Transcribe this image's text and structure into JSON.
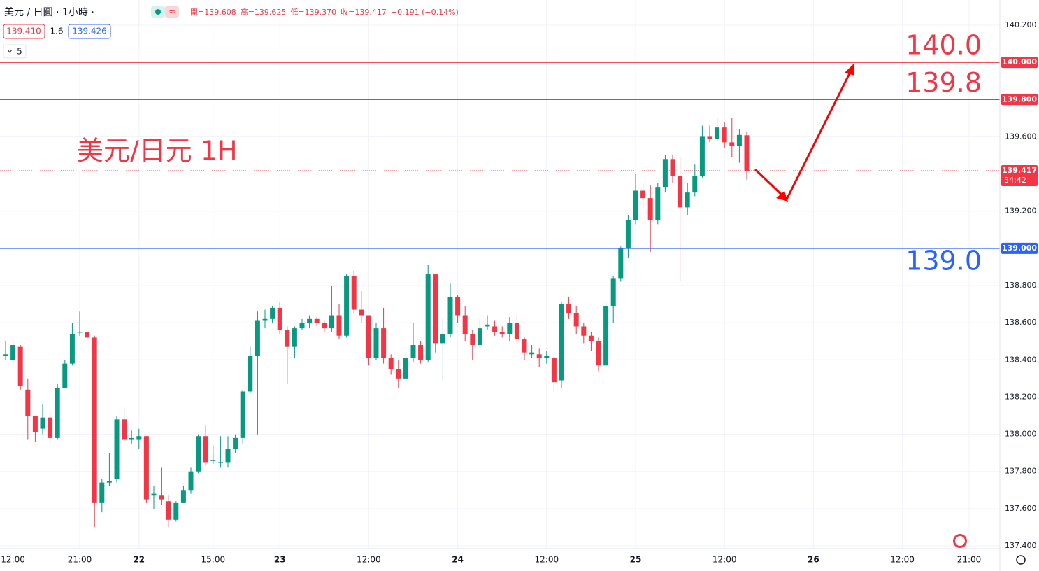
{
  "chart_data": {
    "type": "candlestick",
    "symbol": "美元 / 日圓 · 1小時 ·",
    "ohlc_labels": [
      "開=139.608",
      "高=139.625",
      "低=139.370",
      "收=139.417",
      "−0.191 (−0.14%)"
    ],
    "bid": "139.410",
    "spread": "1.6",
    "ask": "139.426",
    "indicator_count": "5",
    "annotation": "美元/日元 1H",
    "last_price": {
      "value": 139.417,
      "label": "139.417",
      "countdown": "34:42"
    },
    "up_color": "#089981",
    "down_color": "#f23645",
    "grid": true,
    "ylim": [
      137.4,
      140.2
    ],
    "yticks": [
      {
        "value": 140.2,
        "label": "140.200"
      },
      {
        "value": 140.0,
        "label": "140.000"
      },
      {
        "value": 139.8,
        "label": "139.800"
      },
      {
        "value": 139.6,
        "label": "139.600"
      },
      {
        "value": 139.4,
        "label": "139.400"
      },
      {
        "value": 139.2,
        "label": "139.200"
      },
      {
        "value": 139.0,
        "label": "139.000"
      },
      {
        "value": 138.8,
        "label": "138.800"
      },
      {
        "value": 138.6,
        "label": "138.600"
      },
      {
        "value": 138.4,
        "label": "138.400"
      },
      {
        "value": 138.2,
        "label": "138.200"
      },
      {
        "value": 138.0,
        "label": "138.000"
      },
      {
        "value": 137.8,
        "label": "137.800"
      },
      {
        "value": 137.6,
        "label": "137.600"
      },
      {
        "value": 137.4,
        "label": "137.400"
      }
    ],
    "hlines": [
      {
        "value": 140.0,
        "label": "140.0",
        "axis_label": "140.000",
        "color": "#f23645"
      },
      {
        "value": 139.8,
        "label": "139.8",
        "axis_label": "139.800",
        "color": "#f23645"
      },
      {
        "value": 139.0,
        "label": "139.0",
        "axis_label": "139.000",
        "color": "#2962ff"
      }
    ],
    "categories": [
      null,
      "12:00",
      null,
      null,
      null,
      null,
      null,
      null,
      null,
      null,
      "21:00",
      null,
      null,
      null,
      null,
      null,
      null,
      null,
      "22",
      null,
      null,
      null,
      null,
      null,
      null,
      null,
      null,
      null,
      "15:00",
      null,
      null,
      null,
      null,
      null,
      null,
      null,
      null,
      "23",
      null,
      null,
      null,
      null,
      null,
      null,
      null,
      null,
      null,
      null,
      null,
      "12:00",
      null,
      null,
      null,
      null,
      null,
      null,
      null,
      null,
      null,
      null,
      null,
      "24",
      null,
      null,
      null,
      null,
      null,
      null,
      null,
      null,
      null,
      null,
      null,
      "12:00",
      null,
      null,
      null,
      null,
      null,
      null,
      null,
      null,
      null,
      null,
      null,
      "25",
      null,
      null,
      null,
      null,
      null,
      null,
      null,
      null,
      null,
      null,
      null,
      "12:00",
      null,
      null,
      null,
      null,
      null,
      null,
      null,
      null,
      null,
      null,
      null,
      "26",
      null,
      null,
      null,
      null,
      null,
      null,
      null,
      null,
      null,
      null,
      null,
      "12:00",
      null,
      null,
      null,
      null,
      null,
      null,
      null,
      null,
      "21:00"
    ],
    "open": [
      138.42,
      138.4,
      138.47,
      138.24,
      138.1,
      138.03,
      138.09,
      137.98,
      138.25,
      138.38,
      138.55,
      138.55,
      138.52,
      137.63,
      137.74,
      137.76,
      138.08,
      137.97,
      137.97,
      137.99,
      137.67,
      137.67,
      137.64,
      137.54,
      137.63,
      137.7,
      137.8,
      137.99,
      137.86,
      137.85,
      137.85,
      137.92,
      137.98,
      138.23,
      138.42,
      138.61,
      138.62,
      138.68,
      138.56,
      138.47,
      138.57,
      138.6,
      138.62,
      138.6,
      138.57,
      138.64,
      138.53,
      138.85,
      138.67,
      138.64,
      138.41,
      138.57,
      138.41,
      138.35,
      138.3,
      138.41,
      138.48,
      138.4,
      138.86,
      138.49,
      138.54,
      138.74,
      138.64,
      138.54,
      138.48,
      138.58,
      138.58,
      138.55,
      138.54,
      138.6,
      138.51,
      138.43,
      138.43,
      138.41,
      138.41,
      138.29,
      138.7,
      138.65,
      138.58,
      138.53,
      138.5,
      138.37,
      138.69,
      138.84,
      139.0,
      139.15,
      139.31,
      139.27,
      139.15,
      139.33,
      139.48,
      139.39,
      139.22,
      139.3,
      139.39,
      139.6,
      139.59,
      139.65,
      139.57,
      139.55,
      139.608,
      null,
      null,
      null,
      null,
      null,
      null,
      null,
      null,
      null,
      null,
      null,
      null,
      null,
      null,
      null,
      null,
      null,
      null,
      null,
      null,
      null,
      null,
      null,
      null,
      null,
      null,
      null,
      null,
      null,
      null
    ],
    "high": [
      138.5,
      138.5,
      138.48,
      138.3,
      138.1,
      138.16,
      138.12,
      138.27,
      138.4,
      138.6,
      138.66,
      138.55,
      138.53,
      137.76,
      137.9,
      138.1,
      138.14,
      138.02,
      138.03,
      137.99,
      137.72,
      137.82,
      137.67,
      137.64,
      137.72,
      137.82,
      138.0,
      138.05,
      137.94,
      137.99,
      137.99,
      138.0,
      138.24,
      138.47,
      138.66,
      138.67,
      138.69,
      138.71,
      138.58,
      138.58,
      138.62,
      138.64,
      138.63,
      138.61,
      138.8,
      138.7,
      138.86,
      138.88,
      138.77,
      138.64,
      138.6,
      138.68,
      138.43,
      138.4,
      138.43,
      138.6,
      138.5,
      138.91,
      138.86,
      138.62,
      138.81,
      138.75,
      138.69,
      138.56,
      138.62,
      138.64,
      138.61,
      138.58,
      138.63,
      138.64,
      138.52,
      138.48,
      138.46,
      138.45,
      138.43,
      138.71,
      138.74,
      138.69,
      138.6,
      138.55,
      138.52,
      138.71,
      138.85,
      139.01,
      139.18,
      139.4,
      139.35,
      139.34,
      139.35,
      139.5,
      139.5,
      139.49,
      139.35,
      139.45,
      139.66,
      139.66,
      139.7,
      139.68,
      139.7,
      139.64,
      139.625,
      null,
      null,
      null,
      null,
      null,
      null,
      null,
      null,
      null,
      null,
      null,
      null,
      null,
      null,
      null,
      null,
      null,
      null,
      null,
      null,
      null,
      null,
      null,
      null,
      null,
      null,
      null,
      null,
      null,
      null
    ],
    "low": [
      138.4,
      138.38,
      138.24,
      137.97,
      137.96,
      138.0,
      137.96,
      137.97,
      138.25,
      138.37,
      138.53,
      138.5,
      137.5,
      137.58,
      137.72,
      137.74,
      137.96,
      137.95,
      137.92,
      137.63,
      137.6,
      137.62,
      137.5,
      137.53,
      137.63,
      137.68,
      137.79,
      137.83,
      137.84,
      137.82,
      137.82,
      137.9,
      137.95,
      138.22,
      138.0,
      138.57,
      138.6,
      138.54,
      138.27,
      138.41,
      138.56,
      138.57,
      138.58,
      138.55,
      138.55,
      138.51,
      138.52,
      138.65,
      138.6,
      138.37,
      138.4,
      138.38,
      138.32,
      138.25,
      138.28,
      138.39,
      138.38,
      138.39,
      138.44,
      138.29,
      138.52,
      138.6,
      138.5,
      138.4,
      138.46,
      138.56,
      138.53,
      138.52,
      138.5,
      138.49,
      138.4,
      138.41,
      138.36,
      138.38,
      138.23,
      138.25,
      138.62,
      138.54,
      138.49,
      138.45,
      138.34,
      138.36,
      138.6,
      138.82,
      138.95,
      139.13,
      139.22,
      138.98,
      139.13,
      139.3,
      139.35,
      138.82,
      139.18,
      139.28,
      139.38,
      139.57,
      139.57,
      139.54,
      139.49,
      139.46,
      139.37,
      null,
      null,
      null,
      null,
      null,
      null,
      null,
      null,
      null,
      null,
      null,
      null,
      null,
      null,
      null,
      null,
      null,
      null,
      null,
      null,
      null,
      null,
      null,
      null,
      null,
      null,
      null,
      null,
      null,
      null
    ],
    "close": [
      138.43,
      138.48,
      138.26,
      138.1,
      138.01,
      138.09,
      137.98,
      138.25,
      138.38,
      138.54,
      138.55,
      138.52,
      137.63,
      137.74,
      137.75,
      138.08,
      137.97,
      137.98,
      137.99,
      137.65,
      137.68,
      137.65,
      137.54,
      137.63,
      137.7,
      137.8,
      137.99,
      137.85,
      137.86,
      137.85,
      137.92,
      137.98,
      138.23,
      138.42,
      138.61,
      138.62,
      138.68,
      138.56,
      138.47,
      138.57,
      138.6,
      138.62,
      138.6,
      138.57,
      138.64,
      138.53,
      138.85,
      138.67,
      138.64,
      138.41,
      138.57,
      138.41,
      138.35,
      138.3,
      138.41,
      138.48,
      138.4,
      138.86,
      138.49,
      138.54,
      138.74,
      138.64,
      138.54,
      138.48,
      138.57,
      138.59,
      138.55,
      138.54,
      138.6,
      138.51,
      138.44,
      138.44,
      138.41,
      138.42,
      138.28,
      138.7,
      138.65,
      138.58,
      138.53,
      138.5,
      138.37,
      138.69,
      138.84,
      139.0,
      139.15,
      139.31,
      139.27,
      139.15,
      139.33,
      139.48,
      139.39,
      139.22,
      139.3,
      139.39,
      139.6,
      139.59,
      139.65,
      139.57,
      139.55,
      139.61,
      139.417,
      null,
      null,
      null,
      null,
      null,
      null,
      null,
      null,
      null,
      null,
      null,
      null,
      null,
      null,
      null,
      null,
      null,
      null,
      null,
      null,
      null,
      null,
      null,
      null,
      null,
      null,
      null,
      null,
      null,
      null
    ]
  }
}
